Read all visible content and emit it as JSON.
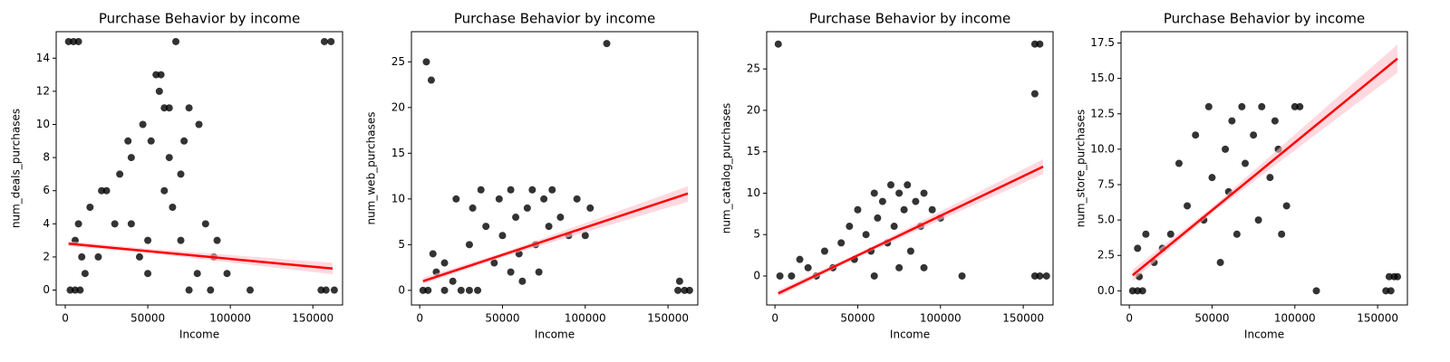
{
  "chart_data": [
    {
      "type": "scatter",
      "title": "Purchase Behavior by income",
      "xlabel": "Income",
      "ylabel": "num_deals_purchases",
      "xlim": [
        -5500,
        168000
      ],
      "xticks": [
        0,
        50000,
        100000,
        150000
      ],
      "ylim": [
        -0.9,
        15.6
      ],
      "yticks": [
        0,
        2,
        4,
        6,
        8,
        10,
        12,
        14
      ],
      "points": {
        "color": "#000000",
        "opacity": 0.8,
        "x": [
          2000,
          5000,
          8000,
          67000,
          157000,
          161000,
          3000,
          6000,
          9000,
          55000,
          58000,
          57000,
          60000,
          63000,
          75000,
          47000,
          81000,
          38000,
          52000,
          72000,
          40000,
          63000,
          33000,
          70000,
          25000,
          60000,
          15000,
          65000,
          8000,
          40000,
          85000,
          6000,
          50000,
          92000,
          10000,
          45000,
          90000,
          12000,
          50000,
          98000,
          75000,
          88000,
          112000,
          155000,
          158000,
          163000,
          22000,
          30000,
          70000,
          20000,
          80000
        ],
        "values": [
          15,
          15,
          15,
          15,
          15,
          15,
          0,
          0,
          0,
          13,
          13,
          12,
          11,
          11,
          11,
          10,
          10,
          9,
          9,
          9,
          8,
          8,
          7,
          7,
          6,
          6,
          5,
          5,
          4,
          4,
          4,
          3,
          3,
          3,
          2,
          2,
          2,
          1,
          1,
          1,
          0,
          0,
          0,
          0,
          0,
          0,
          6,
          4,
          3,
          2,
          1
        ]
      },
      "fit": {
        "color": "#ff0000",
        "x": [
          2000,
          162000
        ],
        "values": [
          2.8,
          1.3
        ]
      },
      "band": {
        "color": "#ffc0cb",
        "x": [
          2000,
          50000,
          162000
        ],
        "lower": [
          2.65,
          2.25,
          0.95
        ],
        "upper": [
          2.95,
          2.5,
          1.65
        ]
      }
    },
    {
      "type": "scatter",
      "title": "Purchase Behavior by income",
      "xlabel": "Income",
      "ylabel": "num_web_purchases",
      "xlim": [
        -5000,
        168000
      ],
      "xticks": [
        0,
        50000,
        100000,
        150000
      ],
      "ylim": [
        -1.6,
        28.3
      ],
      "yticks": [
        0,
        5,
        10,
        15,
        20,
        25
      ],
      "points": {
        "color": "#000000",
        "opacity": 0.8,
        "x": [
          4000,
          7000,
          113000,
          157000,
          156000,
          160000,
          163000,
          2000,
          5000,
          8000,
          10000,
          15000,
          20000,
          22000,
          25000,
          30000,
          32000,
          35000,
          37000,
          40000,
          45000,
          48000,
          50000,
          55000,
          58000,
          60000,
          62000,
          65000,
          68000,
          70000,
          72000,
          75000,
          78000,
          80000,
          85000,
          90000,
          95000,
          100000,
          103000,
          15000,
          30000,
          55000
        ],
        "values": [
          25,
          23,
          27,
          1,
          0,
          0,
          0,
          0,
          0,
          4,
          2,
          3,
          1,
          10,
          0,
          5,
          9,
          0,
          11,
          7,
          3,
          10,
          6,
          11,
          8,
          4,
          1,
          9,
          11,
          5,
          2,
          10,
          7,
          11,
          8,
          6,
          10,
          6,
          9,
          0,
          0,
          2
        ]
      },
      "fit": {
        "color": "#ff0000",
        "x": [
          2000,
          162000
        ],
        "values": [
          1.0,
          10.6
        ]
      },
      "band": {
        "color": "#ffc0cb",
        "x": [
          2000,
          50000,
          162000
        ],
        "lower": [
          0.7,
          3.65,
          9.7
        ],
        "upper": [
          1.4,
          4.1,
          11.4
        ]
      }
    },
    {
      "type": "scatter",
      "title": "Purchase Behavior by income",
      "xlabel": "Income",
      "ylabel": "num_catalog_purchases",
      "xlim": [
        -5000,
        168000
      ],
      "xticks": [
        0,
        50000,
        100000,
        150000
      ],
      "ylim": [
        -3.5,
        29.5
      ],
      "yticks": [
        0,
        5,
        10,
        15,
        20,
        25
      ],
      "points": {
        "color": "#000000",
        "opacity": 0.8,
        "x": [
          2000,
          157000,
          160000,
          157000,
          113000,
          157000,
          160000,
          164000,
          3000,
          10000,
          15000,
          20000,
          25000,
          30000,
          35000,
          40000,
          45000,
          48000,
          50000,
          55000,
          58000,
          60000,
          62000,
          65000,
          68000,
          70000,
          72000,
          75000,
          78000,
          80000,
          82000,
          85000,
          88000,
          90000,
          95000,
          100000,
          60000,
          75000,
          90000
        ],
        "values": [
          28,
          28,
          28,
          22,
          0,
          0,
          0,
          0,
          0,
          0,
          2,
          1,
          0,
          3,
          1,
          4,
          6,
          2,
          8,
          5,
          3,
          10,
          7,
          9,
          4,
          11,
          6,
          10,
          8,
          11,
          3,
          9,
          6,
          10,
          8,
          7,
          0,
          1,
          1
        ]
      },
      "fit": {
        "color": "#ff0000",
        "x": [
          2000,
          162000
        ],
        "values": [
          -2.1,
          13.2
        ]
      },
      "band": {
        "color": "#ffc0cb",
        "x": [
          2000,
          50000,
          162000
        ],
        "lower": [
          -2.5,
          2.3,
          12.3
        ],
        "upper": [
          -1.7,
          2.7,
          14.1
        ]
      }
    },
    {
      "type": "scatter",
      "title": "Purchase Behavior by income",
      "xlabel": "Income",
      "ylabel": "num_store_purchases",
      "xlim": [
        -5000,
        168000
      ],
      "xticks": [
        0,
        50000,
        100000,
        150000
      ],
      "ylim": [
        -1.0,
        18.3
      ],
      "yticks": [
        {
          "value": 0,
          "label": "0.0"
        },
        2.5,
        {
          "value": 5,
          "label": "5.0"
        },
        7.5,
        {
          "value": 10,
          "label": "10.0"
        },
        12.5,
        {
          "value": 15,
          "label": "15.0"
        },
        17.5
      ],
      "points": {
        "color": "#000000",
        "opacity": 0.8,
        "x": [
          2000,
          5000,
          8000,
          113000,
          155000,
          158000,
          157000,
          160000,
          162000,
          6000,
          5000,
          10000,
          15000,
          20000,
          25000,
          30000,
          35000,
          40000,
          45000,
          48000,
          50000,
          55000,
          58000,
          60000,
          62000,
          65000,
          68000,
          70000,
          75000,
          78000,
          80000,
          85000,
          88000,
          90000,
          95000,
          100000,
          103000,
          92000
        ],
        "values": [
          0,
          0,
          0,
          0,
          0,
          0,
          1,
          1,
          1,
          1,
          3,
          4,
          2,
          3,
          4,
          9,
          6,
          11,
          5,
          13,
          8,
          2,
          10,
          7,
          12,
          4,
          13,
          9,
          11,
          5,
          13,
          8,
          12,
          10,
          6,
          13,
          13,
          4
        ]
      },
      "fit": {
        "color": "#ff0000",
        "x": [
          2000,
          162000
        ],
        "values": [
          1.1,
          16.4
        ]
      },
      "band": {
        "color": "#ffc0cb",
        "x": [
          2000,
          50000,
          162000
        ],
        "lower": [
          0.7,
          5.5,
          15.4
        ],
        "upper": [
          1.5,
          5.9,
          17.4
        ]
      }
    }
  ]
}
